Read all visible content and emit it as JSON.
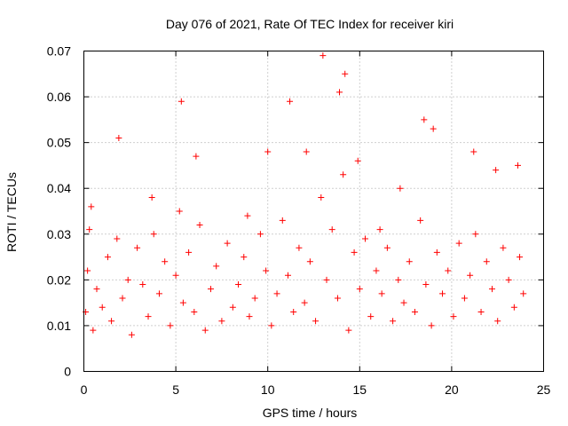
{
  "chart_data": {
    "type": "scatter",
    "title": "Day 076 of 2021, Rate Of TEC Index for receiver kiri",
    "xlabel": "GPS time / hours",
    "ylabel": "ROTI / TECUs",
    "xlim": [
      0,
      25
    ],
    "ylim": [
      0,
      0.07
    ],
    "xticks": [
      0,
      5,
      10,
      15,
      20,
      25
    ],
    "xtick_labels": [
      "0",
      "5",
      "10",
      "15",
      "20",
      "25"
    ],
    "yticks": [
      0,
      0.01,
      0.02,
      0.03,
      0.04,
      0.05,
      0.06,
      0.07
    ],
    "ytick_labels": [
      "0",
      "0.01",
      "0.02",
      "0.03",
      "0.04",
      "0.05",
      "0.06",
      "0.07"
    ],
    "grid": true,
    "marker": "+",
    "color": "#ff0000",
    "series": [
      {
        "name": "ROTI",
        "x": [
          0.1,
          0.2,
          0.3,
          0.5,
          0.7,
          1.0,
          1.3,
          1.5,
          1.8,
          2.1,
          2.4,
          2.6,
          2.9,
          3.2,
          3.5,
          3.8,
          4.1,
          4.4,
          4.7,
          5.0,
          5.2,
          5.4,
          5.7,
          6.0,
          6.3,
          6.6,
          6.9,
          7.2,
          7.5,
          7.8,
          8.1,
          8.4,
          8.7,
          9.0,
          9.3,
          9.6,
          9.9,
          10.2,
          10.5,
          10.8,
          11.1,
          11.4,
          11.7,
          12.0,
          12.3,
          12.6,
          12.9,
          13.2,
          13.5,
          13.8,
          14.1,
          14.4,
          14.7,
          15.0,
          15.3,
          15.6,
          15.9,
          16.2,
          16.5,
          16.8,
          17.1,
          17.4,
          17.7,
          18.0,
          18.3,
          18.6,
          18.9,
          19.2,
          19.5,
          19.8,
          20.1,
          20.4,
          20.7,
          21.0,
          21.3,
          21.6,
          21.9,
          22.2,
          22.5,
          22.8,
          23.1,
          23.4,
          23.7,
          23.9,
          0.4,
          1.9,
          3.7,
          5.3,
          6.1,
          8.9,
          10.0,
          11.2,
          12.1,
          13.0,
          13.9,
          14.2,
          14.9,
          16.1,
          17.2,
          18.5,
          19.0,
          21.2,
          22.4,
          23.6
        ],
        "y": [
          0.013,
          0.022,
          0.031,
          0.009,
          0.018,
          0.014,
          0.025,
          0.011,
          0.029,
          0.016,
          0.02,
          0.008,
          0.027,
          0.019,
          0.012,
          0.03,
          0.017,
          0.024,
          0.01,
          0.021,
          0.035,
          0.015,
          0.026,
          0.013,
          0.032,
          0.009,
          0.018,
          0.023,
          0.011,
          0.028,
          0.014,
          0.019,
          0.025,
          0.012,
          0.016,
          0.03,
          0.022,
          0.01,
          0.017,
          0.033,
          0.021,
          0.013,
          0.027,
          0.015,
          0.024,
          0.011,
          0.038,
          0.02,
          0.031,
          0.016,
          0.043,
          0.009,
          0.026,
          0.018,
          0.029,
          0.012,
          0.022,
          0.017,
          0.027,
          0.011,
          0.02,
          0.015,
          0.024,
          0.013,
          0.033,
          0.019,
          0.01,
          0.026,
          0.017,
          0.022,
          0.012,
          0.028,
          0.016,
          0.021,
          0.03,
          0.013,
          0.024,
          0.018,
          0.011,
          0.027,
          0.02,
          0.014,
          0.025,
          0.017,
          0.036,
          0.051,
          0.038,
          0.059,
          0.047,
          0.034,
          0.048,
          0.059,
          0.048,
          0.069,
          0.061,
          0.065,
          0.046,
          0.031,
          0.04,
          0.055,
          0.053,
          0.048,
          0.044,
          0.045
        ]
      }
    ]
  }
}
